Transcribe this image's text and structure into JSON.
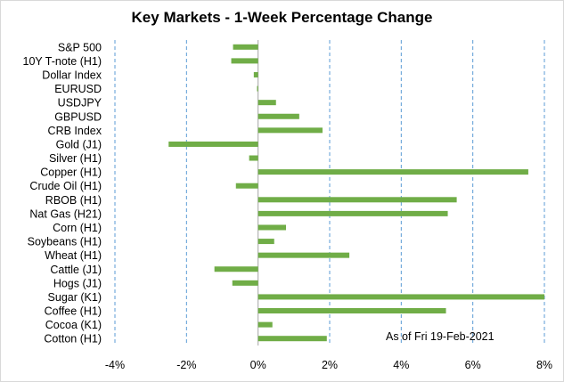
{
  "chart_data": {
    "type": "bar",
    "orientation": "horizontal",
    "title": "Key Markets - 1-Week Percentage Change",
    "categories": [
      "S&P 500",
      "10Y T-note (H1)",
      "Dollar Index",
      "EURUSD",
      "USDJPY",
      "GBPUSD",
      "CRB Index",
      "Gold (J1)",
      "Silver (H1)",
      "Copper (H1)",
      "Crude Oil (H1)",
      "RBOB (H1)",
      "Nat Gas (H21)",
      "Corn (H1)",
      "Soybeans (H1)",
      "Wheat (H1)",
      "Cattle (J1)",
      "Hogs (J1)",
      "Sugar (K1)",
      "Coffee (H1)",
      "Cocoa (K1)",
      "Cotton (H1)"
    ],
    "values": [
      -0.7,
      -0.75,
      -0.12,
      -0.03,
      0.5,
      1.15,
      1.8,
      -2.5,
      -0.25,
      7.55,
      -0.62,
      5.55,
      5.3,
      0.78,
      0.45,
      2.55,
      -1.22,
      -0.72,
      8.0,
      5.25,
      0.4,
      1.92
    ],
    "xlim": [
      -4,
      8
    ],
    "x_ticks": [
      -4,
      -2,
      0,
      2,
      4,
      6,
      8
    ],
    "x_tick_labels": [
      "-4%",
      "-2%",
      "0%",
      "2%",
      "4%",
      "6%",
      "8%"
    ],
    "grid": "vertical dashed",
    "bar_color": "#70ad47",
    "grid_color": "#5b9bd5",
    "annotation": "As of Fri 19-Feb-2021"
  }
}
